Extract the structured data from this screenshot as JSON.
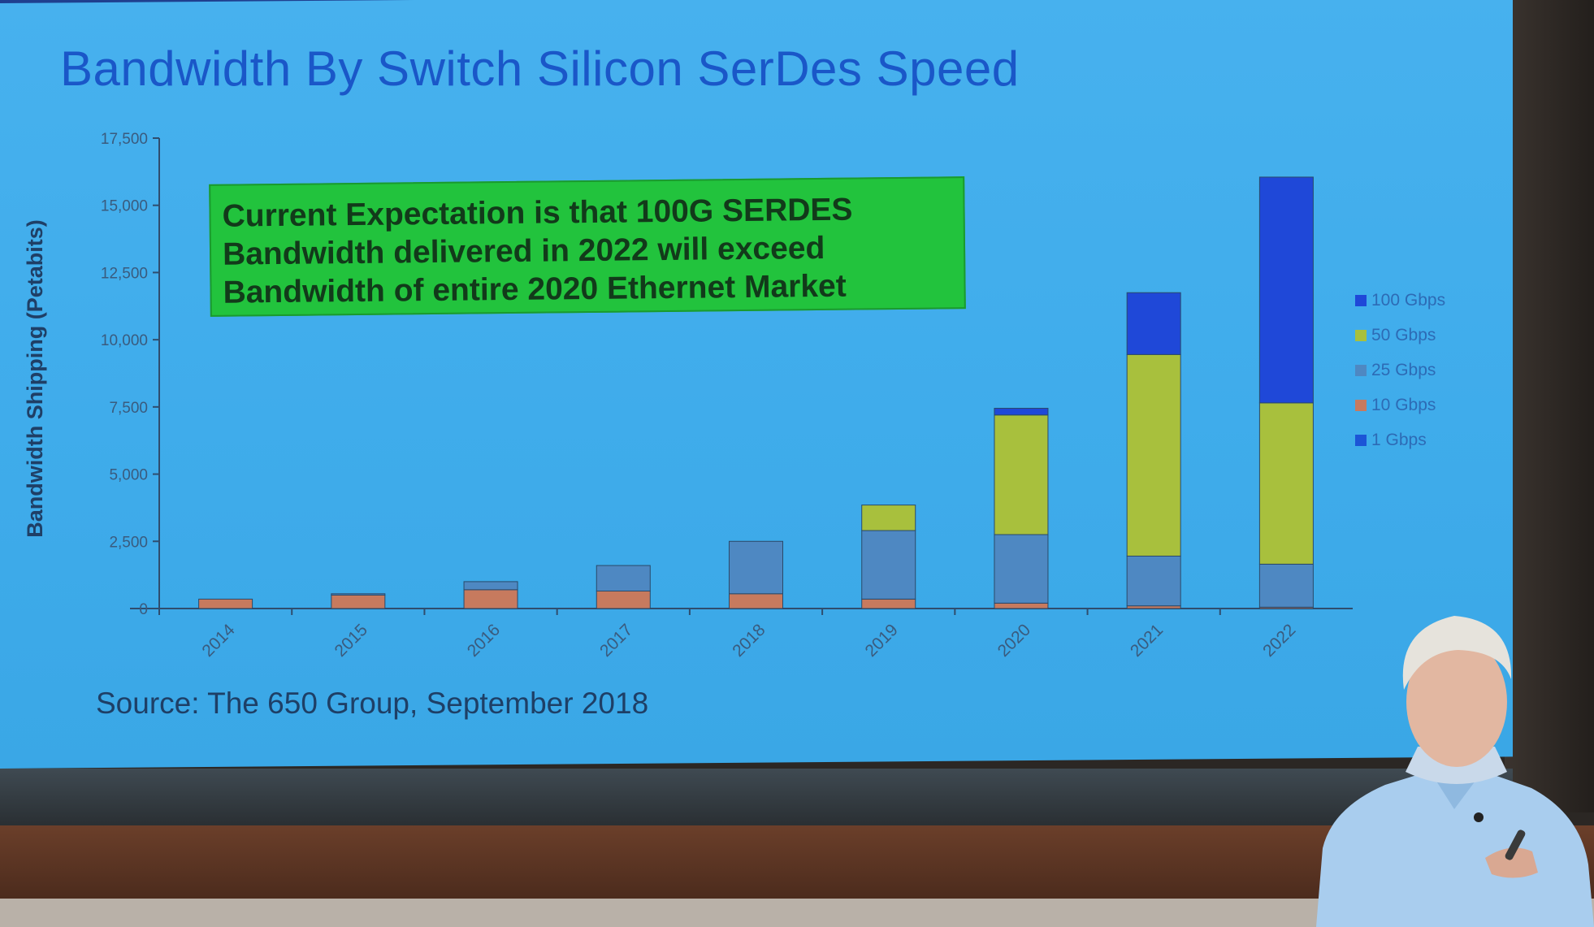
{
  "slide": {
    "title": "Bandwidth By Switch Silicon SerDes Speed",
    "callout_lines": [
      "Current Expectation is that 100G SERDES",
      "Bandwidth delivered in 2022 will exceed",
      "Bandwidth of entire 2020 Ethernet Market"
    ],
    "source": "Source: The 650 Group, September 2018"
  },
  "chart_data": {
    "type": "bar",
    "stacked": true,
    "ylabel": "Bandwidth Shipping (Petabits)",
    "xlabel": "",
    "ylim": [
      0,
      17500
    ],
    "yticks": [
      "0",
      "2,500",
      "5,000",
      "7,500",
      "10,000",
      "12,500",
      "15,000",
      "17,500"
    ],
    "categories": [
      "2014",
      "2015",
      "2016",
      "2017",
      "2018",
      "2019",
      "2020",
      "2021",
      "2022"
    ],
    "series": [
      {
        "name": "1 Gbps",
        "color": "#1c55d6",
        "values": [
          0,
          0,
          0,
          0,
          0,
          0,
          0,
          0,
          0
        ]
      },
      {
        "name": "10 Gbps",
        "color": "#c77a5e",
        "values": [
          350,
          500,
          700,
          650,
          550,
          350,
          200,
          100,
          50
        ]
      },
      {
        "name": "25 Gbps",
        "color": "#4e88c2",
        "values": [
          0,
          50,
          300,
          950,
          1950,
          2550,
          2550,
          1850,
          1600
        ]
      },
      {
        "name": "50 Gbps",
        "color": "#a8c03d",
        "values": [
          0,
          0,
          0,
          0,
          0,
          950,
          4450,
          7500,
          6000
        ]
      },
      {
        "name": "100 Gbps",
        "color": "#1f48d8",
        "values": [
          0,
          0,
          0,
          0,
          0,
          0,
          250,
          2300,
          8400
        ]
      }
    ],
    "legend_order": [
      "100 Gbps",
      "50 Gbps",
      "25 Gbps",
      "10 Gbps",
      "1 Gbps"
    ],
    "legend_position": "right",
    "grid": false
  }
}
